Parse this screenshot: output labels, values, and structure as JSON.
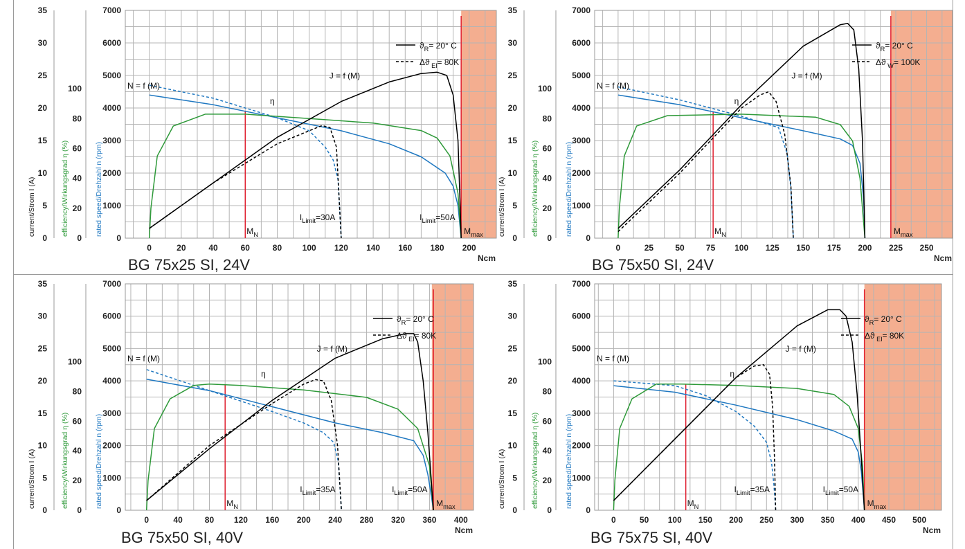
{
  "colors": {
    "speed": "#1f78c1",
    "efficiency": "#2f9a3a",
    "current": "#000000",
    "limit": "#e02030",
    "max_zone": "#f4ae90",
    "grid": "#b4b4b4"
  },
  "axis_labels": {
    "current": "current/Strom I (A)",
    "efficiency": "efficiency/Wirkungsgrad η (%)",
    "speed": "rated speed/Drehzahl n (rpm)",
    "x_unit": "Ncm"
  },
  "axis_ticks": {
    "current": [
      "0",
      "5",
      "10",
      "15",
      "20",
      "25",
      "30",
      "35"
    ],
    "efficiency": [
      "0",
      "20",
      "40",
      "60",
      "80",
      "100"
    ],
    "speed": [
      "0",
      "1000",
      "2000",
      "3000",
      "4000",
      "5000",
      "6000",
      "7000"
    ]
  },
  "legend_text": {
    "solid_sub_label": "R",
    "solid_value": "= 20° C",
    "dash_delta": "Δ",
    "theta": "ϑ",
    "eta": "η",
    "speed_curve": "N = f (M)",
    "current_curve": "J = f (M)",
    "i_prefix": "I",
    "i_sub": "Limit",
    "mn_main": "M",
    "mn_sub": "N",
    "mmax_main": "M",
    "mmax_sub": "max"
  },
  "chart_data": [
    {
      "type": "line",
      "title": "BG 75x25 SI, 24V",
      "xlabel": "Ncm",
      "x_ticks": [
        0,
        20,
        40,
        60,
        80,
        100,
        120,
        140,
        160,
        180,
        200
      ],
      "xlim": [
        -15,
        217
      ],
      "ylim_speed": [
        0,
        7000
      ],
      "ylim_current": [
        0,
        35
      ],
      "ylim_efficiency": [
        0,
        100
      ],
      "legend": {
        "dashed_sub": "El",
        "dashed_value": "= 80K"
      },
      "M_N": 60,
      "M_max": 195,
      "max_zone_from": 195,
      "current_limits": [
        {
          "label": "30A",
          "at": 120
        },
        {
          "label": "50A",
          "at": 195
        }
      ],
      "series": [
        {
          "name": "N = f (M)",
          "axis": "speed",
          "style": "solid",
          "x": [
            0,
            40,
            80,
            120,
            150,
            170,
            185,
            190,
            193,
            195
          ],
          "y": [
            4400,
            4100,
            3700,
            3300,
            2900,
            2500,
            2000,
            1600,
            1000,
            0
          ]
        },
        {
          "name": "N = f (M)",
          "axis": "speed",
          "style": "dashed",
          "x": [
            0,
            40,
            80,
            100,
            110,
            115,
            118,
            120
          ],
          "y": [
            4700,
            4300,
            3700,
            3300,
            2800,
            2400,
            1800,
            0
          ]
        },
        {
          "name": "η",
          "axis": "efficiency",
          "style": "solid",
          "x": [
            0,
            1,
            5,
            15,
            35,
            60,
            100,
            140,
            170,
            180,
            188,
            193,
            195
          ],
          "y": [
            0,
            20,
            55,
            75,
            83,
            83,
            80,
            77,
            72,
            67,
            55,
            30,
            0
          ]
        },
        {
          "name": "J = f (M)",
          "axis": "current",
          "style": "solid",
          "x": [
            0,
            40,
            80,
            120,
            150,
            170,
            180,
            186,
            190,
            193,
            195
          ],
          "y": [
            1.5,
            8.5,
            15.5,
            21,
            24,
            25.3,
            25.5,
            25,
            22,
            15,
            0
          ]
        },
        {
          "name": "J = f (M)",
          "axis": "current",
          "style": "dashed",
          "x": [
            0,
            40,
            80,
            100,
            108,
            113,
            117,
            120
          ],
          "y": [
            1.5,
            8.5,
            14.5,
            16.5,
            17.3,
            17,
            14,
            0
          ]
        }
      ]
    },
    {
      "type": "line",
      "title": "BG 75x50 SI, 24V",
      "xlabel": "Ncm",
      "x_ticks": [
        0,
        25,
        50,
        75,
        100,
        125,
        150,
        175,
        200,
        225,
        250
      ],
      "xlim": [
        -19,
        271
      ],
      "ylim_speed": [
        0,
        7000
      ],
      "ylim_current": [
        0,
        35
      ],
      "ylim_efficiency": [
        0,
        100
      ],
      "legend": {
        "dashed_sub": "W",
        "dashed_value": "= 100K"
      },
      "M_N": 77,
      "M_max": 221,
      "max_zone_from": 221,
      "current_limits": [],
      "series": [
        {
          "name": "N = f (M)",
          "axis": "speed",
          "style": "solid",
          "x": [
            0,
            50,
            100,
            150,
            180,
            190,
            196,
            199,
            200
          ],
          "y": [
            4400,
            4100,
            3700,
            3300,
            3050,
            2850,
            2300,
            1200,
            0
          ]
        },
        {
          "name": "N = f (M)",
          "axis": "speed",
          "style": "dashed",
          "x": [
            0,
            50,
            100,
            130,
            137,
            140,
            142
          ],
          "y": [
            4650,
            4250,
            3750,
            3400,
            2600,
            1500,
            0
          ]
        },
        {
          "name": "η",
          "axis": "efficiency",
          "style": "solid",
          "x": [
            0,
            1,
            5,
            15,
            40,
            100,
            160,
            180,
            190,
            196,
            200
          ],
          "y": [
            0,
            20,
            55,
            75,
            82,
            83,
            81,
            76,
            65,
            40,
            0
          ]
        },
        {
          "name": "J = f (M)",
          "axis": "current",
          "style": "solid",
          "x": [
            0,
            50,
            100,
            150,
            180,
            186,
            191,
            195,
            198,
            200
          ],
          "y": [
            1.5,
            10.5,
            20.5,
            29.5,
            32.8,
            33,
            32,
            26,
            15,
            0
          ]
        },
        {
          "name": "J = f (M)",
          "axis": "current",
          "style": "dashed",
          "x": [
            0,
            50,
            100,
            115,
            122,
            128,
            135,
            140,
            142
          ],
          "y": [
            1,
            10,
            20,
            22,
            22.5,
            21,
            16,
            8,
            0
          ]
        }
      ]
    },
    {
      "type": "line",
      "title": "BG 75x50 SI, 40V",
      "xlabel": "Ncm",
      "x_ticks": [
        0,
        40,
        80,
        120,
        160,
        200,
        240,
        280,
        320,
        360,
        400
      ],
      "xlim": [
        -27,
        416
      ],
      "ylim_speed": [
        0,
        7000
      ],
      "ylim_current": [
        0,
        35
      ],
      "ylim_efficiency": [
        0,
        100
      ],
      "legend": {
        "dashed_sub": "El",
        "dashed_value": "= 80K"
      },
      "M_N": 100,
      "M_max": 365,
      "max_zone_from": 363,
      "current_limits": [
        {
          "label": "35A",
          "at": 248
        },
        {
          "label": "50A",
          "at": 365
        }
      ],
      "series": [
        {
          "name": "N = f (M)",
          "axis": "speed",
          "style": "solid",
          "x": [
            0,
            80,
            160,
            240,
            300,
            340,
            352,
            358,
            362,
            365
          ],
          "y": [
            4050,
            3700,
            3200,
            2700,
            2400,
            2150,
            1700,
            1100,
            500,
            0
          ]
        },
        {
          "name": "N = f (M)",
          "axis": "speed",
          "style": "dashed",
          "x": [
            0,
            80,
            160,
            200,
            225,
            238,
            244,
            248
          ],
          "y": [
            4350,
            3700,
            3050,
            2700,
            2400,
            2100,
            1500,
            0
          ]
        },
        {
          "name": "η",
          "axis": "efficiency",
          "style": "solid",
          "x": [
            0,
            2,
            10,
            30,
            60,
            80,
            120,
            200,
            280,
            320,
            345,
            360,
            365
          ],
          "y": [
            0,
            20,
            55,
            75,
            84,
            85,
            84,
            81,
            76,
            68,
            55,
            30,
            0
          ]
        },
        {
          "name": "J = f (M)",
          "axis": "current",
          "style": "solid",
          "x": [
            0,
            80,
            160,
            240,
            300,
            330,
            340,
            345,
            352,
            358,
            365
          ],
          "y": [
            1.5,
            9.5,
            17,
            23.5,
            26.5,
            27.3,
            27.3,
            26,
            20,
            12,
            0
          ]
        },
        {
          "name": "J = f (M)",
          "axis": "current",
          "style": "dashed",
          "x": [
            0,
            80,
            160,
            200,
            215,
            225,
            235,
            243,
            248
          ],
          "y": [
            1.5,
            10,
            16.5,
            19.5,
            20.2,
            20,
            17,
            10,
            0
          ]
        }
      ]
    },
    {
      "type": "line",
      "title": "BG 75x75 SI, 40V",
      "xlabel": "Ncm",
      "x_ticks": [
        0,
        50,
        100,
        150,
        200,
        250,
        300,
        350,
        400,
        450,
        500
      ],
      "xlim": [
        -31,
        536
      ],
      "ylim_speed": [
        0,
        7000
      ],
      "ylim_current": [
        0,
        35
      ],
      "ylim_efficiency": [
        0,
        100
      ],
      "legend": {
        "dashed_sub": "El",
        "dashed_value": "= 80K"
      },
      "M_N": 118,
      "M_max": 410,
      "max_zone_from": 410,
      "current_limits": [
        {
          "label": "35A",
          "at": 265
        },
        {
          "label": "50A",
          "at": 410
        }
      ],
      "series": [
        {
          "name": "N = f (M)",
          "axis": "speed",
          "style": "solid",
          "x": [
            0,
            100,
            200,
            300,
            360,
            390,
            400,
            405,
            408,
            410
          ],
          "y": [
            3850,
            3650,
            3250,
            2800,
            2450,
            2200,
            1800,
            1200,
            500,
            0
          ]
        },
        {
          "name": "N = f (M)",
          "axis": "speed",
          "style": "dashed",
          "x": [
            0,
            100,
            150,
            200,
            230,
            250,
            258,
            262,
            265
          ],
          "y": [
            4000,
            3850,
            3550,
            3050,
            2600,
            2100,
            1500,
            800,
            0
          ]
        },
        {
          "name": "η",
          "axis": "efficiency",
          "style": "solid",
          "x": [
            0,
            2,
            10,
            30,
            70,
            110,
            200,
            300,
            360,
            385,
            400,
            407,
            410
          ],
          "y": [
            0,
            20,
            55,
            75,
            85,
            85,
            84,
            82,
            78,
            70,
            55,
            30,
            0
          ]
        },
        {
          "name": "J = f (M)",
          "axis": "current",
          "style": "solid",
          "x": [
            0,
            100,
            200,
            300,
            350,
            370,
            380,
            390,
            398,
            405,
            410
          ],
          "y": [
            1.5,
            11,
            20.5,
            28.5,
            31,
            31,
            30,
            26,
            18,
            8,
            0
          ]
        },
        {
          "name": "J = f (M)",
          "axis": "current",
          "style": "dashed",
          "x": [
            0,
            100,
            200,
            230,
            245,
            255,
            260,
            263,
            265
          ],
          "y": [
            1.5,
            11,
            20.5,
            22.3,
            22.5,
            21,
            16,
            8,
            0
          ]
        }
      ]
    }
  ]
}
